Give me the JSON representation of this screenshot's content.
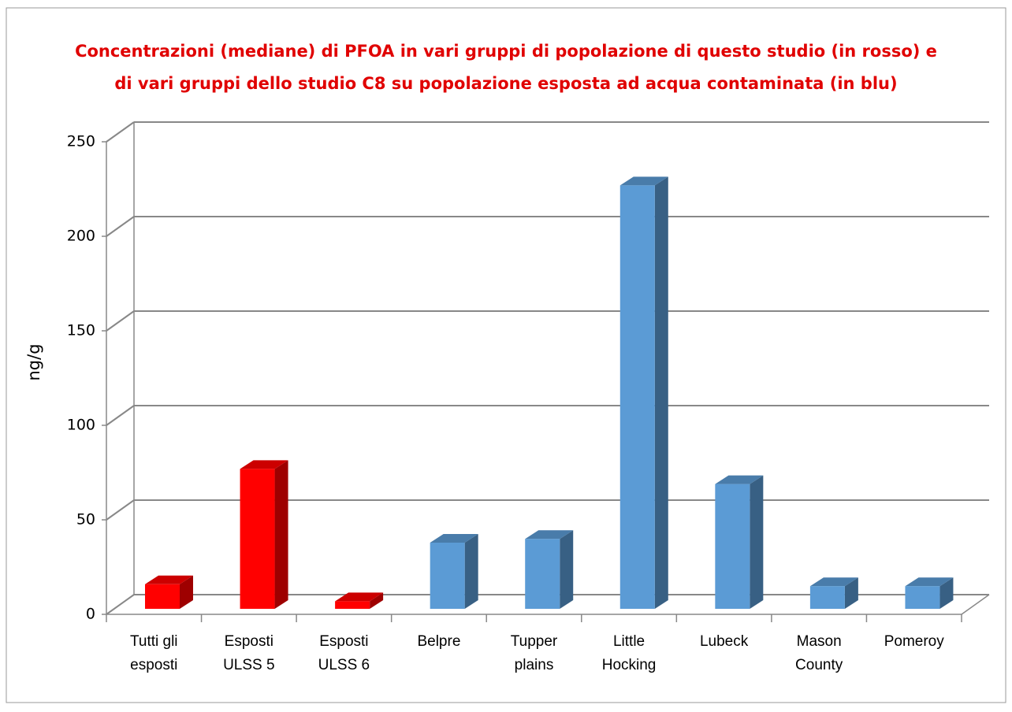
{
  "chart_data": {
    "type": "bar3d",
    "title": [
      "Concentrazioni (mediane) di PFOA in vari gruppi di popolazione di questo studio (in rosso) e",
      "di vari gruppi dello studio C8 su popolazione esposta ad acqua contaminata (in blu)"
    ],
    "y_label": "ng/g",
    "categories": [
      "Tutti gli esposti",
      "Esposti ULSS 5",
      "Esposti ULSS 6",
      "Belpre",
      "Tupper plains",
      "Little Hocking",
      "Lubeck",
      "Mason County",
      "Pomeroy"
    ],
    "values": [
      13,
      74,
      4,
      35,
      37,
      224,
      66,
      12,
      12
    ],
    "colors": [
      "#ff0000",
      "#ff0000",
      "#ff0000",
      "#5b9bd5",
      "#5b9bd5",
      "#5b9bd5",
      "#5b9bd5",
      "#5b9bd5",
      "#5b9bd5"
    ],
    "ylim": [
      0,
      250
    ],
    "yticks": [
      0,
      50,
      100,
      150,
      200,
      250
    ],
    "grid": true
  }
}
